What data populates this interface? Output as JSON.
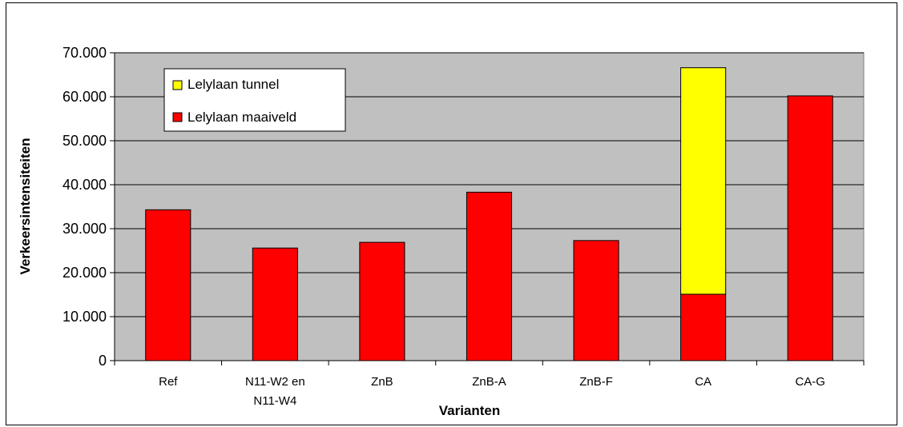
{
  "chart_data": {
    "type": "bar",
    "stacked": true,
    "categories": [
      [
        "Ref"
      ],
      [
        "N11-W2 en",
        "N11-W4"
      ],
      [
        "ZnB"
      ],
      [
        "ZnB-A"
      ],
      [
        "ZnB-F"
      ],
      [
        "CA"
      ],
      [
        "CA-G"
      ]
    ],
    "series": [
      {
        "name": "Lelylaan maaiveld",
        "color": "#ff0000",
        "values": [
          34300,
          25600,
          26900,
          38300,
          27300,
          15100,
          60200
        ]
      },
      {
        "name": "Lelylaan tunnel",
        "color": "#ffff00",
        "values": [
          0,
          0,
          0,
          0,
          0,
          51500,
          0
        ]
      }
    ],
    "xlabel": "Varianten",
    "ylabel": "Verkeersintensiteiten",
    "ylim": [
      0,
      70000
    ],
    "yticks": [
      0,
      10000,
      20000,
      30000,
      40000,
      50000,
      60000,
      70000
    ],
    "ytick_labels": [
      "0",
      "10.000",
      "20.000",
      "30.000",
      "40.000",
      "50.000",
      "60.000",
      "70.000"
    ],
    "grid": true,
    "plot_background": "#c0c0c0",
    "legend": {
      "position": "top-left",
      "entries": [
        "Lelylaan tunnel",
        "Lelylaan maaiveld"
      ]
    }
  }
}
